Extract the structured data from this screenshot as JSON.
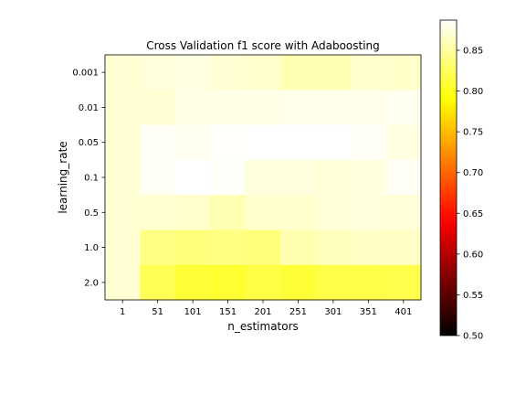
{
  "chart_data": {
    "type": "heatmap",
    "title": "Cross Validation f1 score with Adaboosting",
    "xlabel": "n_estimators",
    "ylabel": "learning_rate",
    "x": [
      "1",
      "51",
      "101",
      "151",
      "201",
      "251",
      "301",
      "351",
      "401"
    ],
    "y": [
      "0.001",
      "0.01",
      "0.05",
      "0.1",
      "0.5",
      "1.0",
      "2.0"
    ],
    "values": [
      [
        0.87,
        0.873,
        0.876,
        0.87,
        0.868,
        0.858,
        0.858,
        0.868,
        0.866
      ],
      [
        0.87,
        0.87,
        0.877,
        0.878,
        0.878,
        0.879,
        0.879,
        0.879,
        0.881
      ],
      [
        0.87,
        0.884,
        0.881,
        0.886,
        0.89,
        0.888,
        0.887,
        0.884,
        0.876
      ],
      [
        0.87,
        0.883,
        0.891,
        0.885,
        0.874,
        0.874,
        0.872,
        0.874,
        0.883
      ],
      [
        0.87,
        0.869,
        0.867,
        0.857,
        0.868,
        0.868,
        0.872,
        0.873,
        0.872
      ],
      [
        0.87,
        0.84,
        0.837,
        0.839,
        0.836,
        0.856,
        0.862,
        0.865,
        0.865
      ],
      [
        0.87,
        0.822,
        0.81,
        0.808,
        0.815,
        0.81,
        0.816,
        0.817,
        0.818
      ]
    ],
    "colormap": "hot",
    "vmin": 0.5,
    "vmax": 0.887,
    "colorbar_ticks": [
      "0.50",
      "0.55",
      "0.60",
      "0.65",
      "0.70",
      "0.75",
      "0.80",
      "0.85"
    ]
  }
}
